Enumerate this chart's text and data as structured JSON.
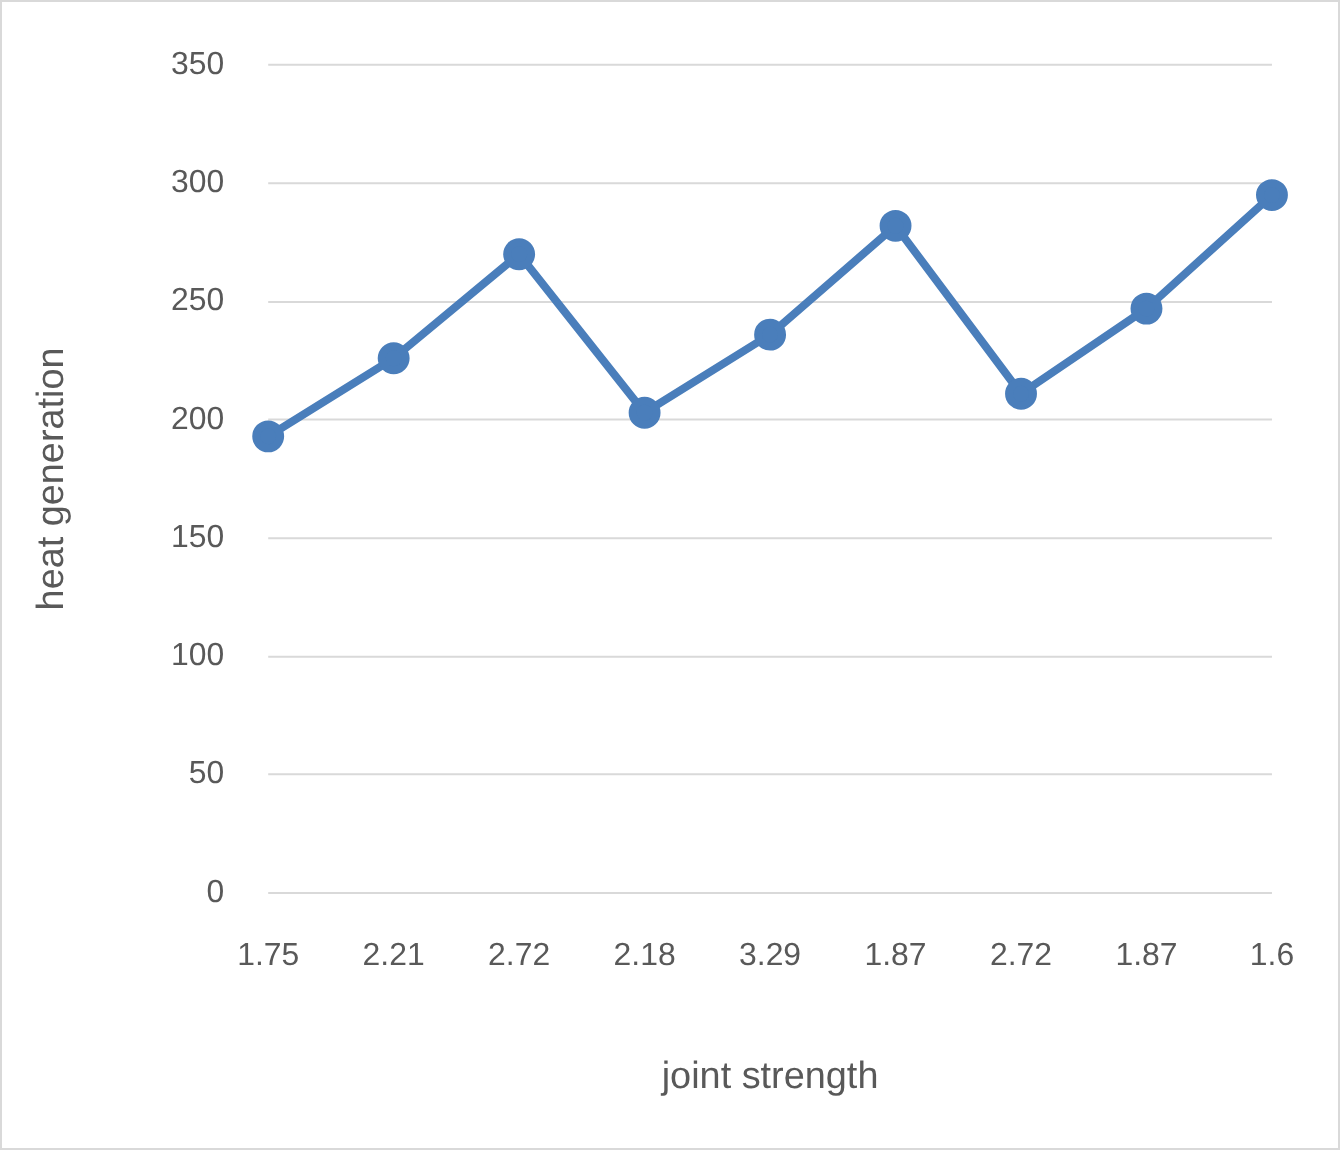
{
  "chart_data": {
    "type": "line",
    "xlabel": "joint strength",
    "ylabel": "heat generation",
    "categories": [
      "1.75",
      "2.21",
      "2.72",
      "2.18",
      "3.29",
      "1.87",
      "2.72",
      "1.87",
      "1.6"
    ],
    "series": [
      {
        "color": "#4a7ebb",
        "values": [
          193,
          226,
          270,
          203,
          236,
          282,
          211,
          247,
          295
        ]
      }
    ],
    "ylim": [
      0,
      350
    ],
    "yticks": [
      0,
      50,
      100,
      150,
      200,
      250,
      300,
      350
    ],
    "grid": "y",
    "legend": false,
    "marker": "circle",
    "line_style": "solid"
  }
}
